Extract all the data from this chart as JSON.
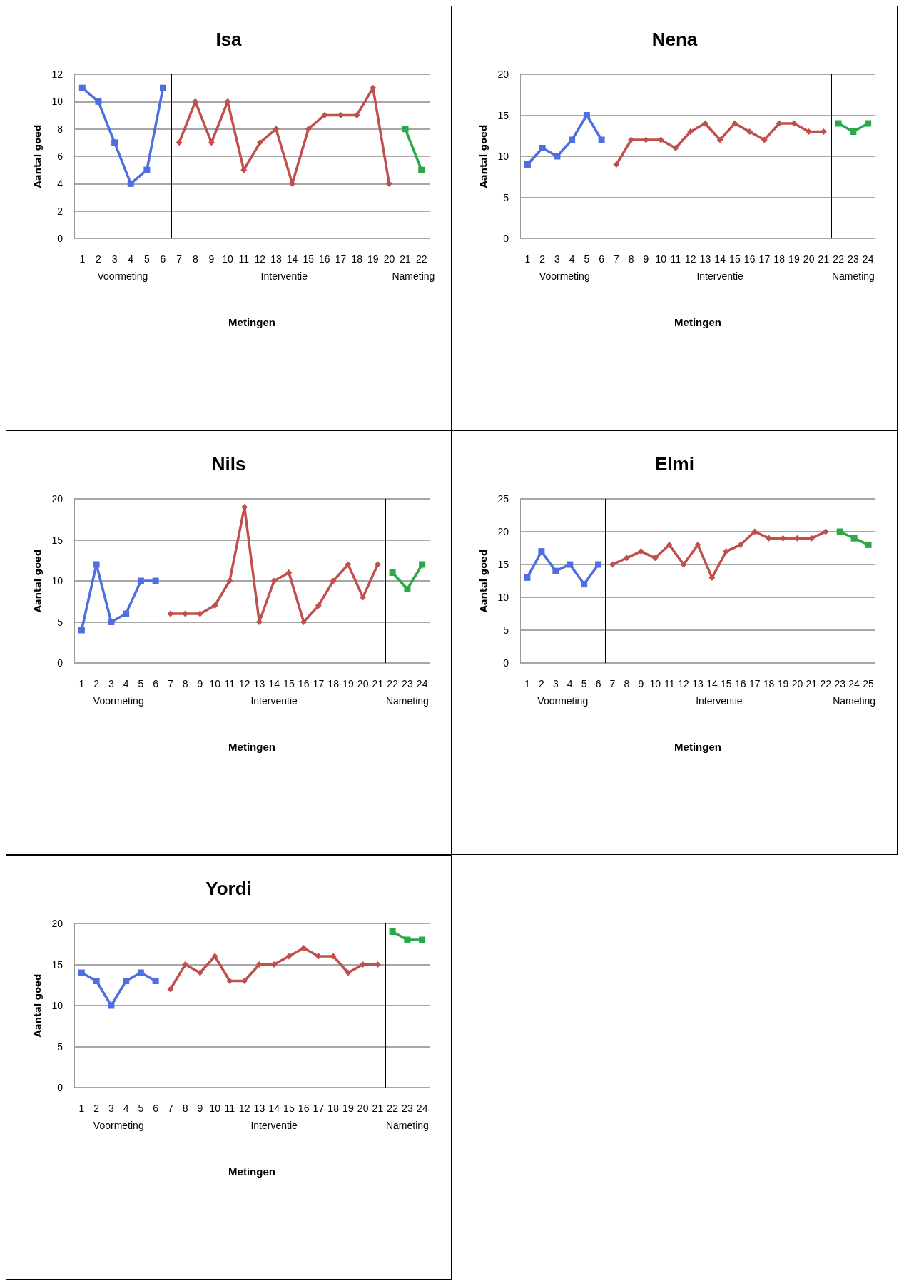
{
  "chart_data": [
    {
      "type": "line",
      "title": "Isa",
      "xlabel": "Metingen",
      "ylabel": "Aantal goed",
      "xlim": [
        0.5,
        22.5
      ],
      "xticks": [
        1,
        2,
        3,
        4,
        5,
        6,
        7,
        8,
        9,
        10,
        11,
        12,
        13,
        14,
        15,
        16,
        17,
        18,
        19,
        20,
        21,
        22
      ],
      "ylim": [
        0,
        12
      ],
      "yticks": [
        0,
        2,
        4,
        6,
        8,
        10,
        12
      ],
      "grid": "y",
      "annotations": [
        "Voormeting",
        "Interventie",
        "Nameting"
      ],
      "ref_lines": [
        {
          "axis": "x",
          "value": 6.5,
          "color": "#000000"
        },
        {
          "axis": "x",
          "value": 20.5,
          "color": "#000000"
        }
      ],
      "series": [
        {
          "color": "#4f6fe0",
          "marker": "square",
          "x": [
            1,
            2,
            3,
            4,
            5,
            6
          ],
          "values": [
            11,
            10,
            7,
            4,
            5,
            11
          ]
        },
        {
          "color": "#c0504d",
          "marker": "diamond",
          "x": [
            7,
            8,
            9,
            10,
            11,
            12,
            13,
            14,
            15,
            16,
            17,
            18,
            19,
            20
          ],
          "values": [
            7,
            10,
            7,
            10,
            5,
            7,
            8,
            4,
            8,
            9,
            9,
            9,
            11,
            4
          ]
        },
        {
          "color": "#2aa84a",
          "marker": "square",
          "x": [
            21,
            22
          ],
          "values": [
            8,
            5
          ]
        }
      ]
    },
    {
      "type": "line",
      "title": "Nena",
      "xlabel": "Metingen",
      "ylabel": "Aantal goed",
      "xlim": [
        0.5,
        24.5
      ],
      "xticks": [
        1,
        2,
        3,
        4,
        5,
        6,
        7,
        8,
        9,
        10,
        11,
        12,
        13,
        14,
        15,
        16,
        17,
        18,
        19,
        20,
        21,
        22,
        23,
        24
      ],
      "ylim": [
        0,
        20
      ],
      "yticks": [
        0,
        5,
        10,
        15,
        20
      ],
      "grid": "y",
      "annotations": [
        "Voormeting",
        "Interventie",
        "Nameting"
      ],
      "ref_lines": [
        {
          "axis": "x",
          "value": 6.5,
          "color": "#000000"
        },
        {
          "axis": "x",
          "value": 21.5,
          "color": "#000000"
        }
      ],
      "series": [
        {
          "color": "#4f6fe0",
          "marker": "square",
          "x": [
            1,
            2,
            3,
            4,
            5,
            6
          ],
          "values": [
            9,
            11,
            10,
            12,
            15,
            12
          ]
        },
        {
          "color": "#c0504d",
          "marker": "diamond",
          "x": [
            7,
            8,
            9,
            10,
            11,
            12,
            13,
            14,
            15,
            16,
            17,
            18,
            19,
            20,
            21
          ],
          "values": [
            9,
            12,
            12,
            12,
            11,
            13,
            14,
            12,
            14,
            13,
            12,
            14,
            14,
            13,
            13
          ]
        },
        {
          "color": "#2aa84a",
          "marker": "square",
          "x": [
            22,
            23,
            24
          ],
          "values": [
            14,
            13,
            14
          ]
        }
      ]
    },
    {
      "type": "line",
      "title": "Nils",
      "xlabel": "Metingen",
      "ylabel": "Aantal goed",
      "xlim": [
        0.5,
        24.5
      ],
      "xticks": [
        1,
        2,
        3,
        4,
        5,
        6,
        7,
        8,
        9,
        10,
        11,
        12,
        13,
        14,
        15,
        16,
        17,
        18,
        19,
        20,
        21,
        22,
        23,
        24
      ],
      "ylim": [
        0,
        20
      ],
      "yticks": [
        0,
        5,
        10,
        15,
        20
      ],
      "grid": "y",
      "annotations": [
        "Voormeting",
        "Interventie",
        "Nameting"
      ],
      "ref_lines": [
        {
          "axis": "x",
          "value": 6.5,
          "color": "#000000"
        },
        {
          "axis": "x",
          "value": 21.5,
          "color": "#000000"
        }
      ],
      "series": [
        {
          "color": "#4f6fe0",
          "marker": "square",
          "x": [
            1,
            2,
            3,
            4,
            5,
            6
          ],
          "values": [
            4,
            12,
            5,
            6,
            10,
            10
          ]
        },
        {
          "color": "#c0504d",
          "marker": "diamond",
          "x": [
            7,
            8,
            9,
            10,
            11,
            12,
            13,
            14,
            15,
            16,
            17,
            18,
            19,
            20,
            21
          ],
          "values": [
            6,
            6,
            6,
            7,
            10,
            19,
            5,
            10,
            11,
            5,
            7,
            10,
            12,
            8,
            12
          ]
        },
        {
          "color": "#2aa84a",
          "marker": "square",
          "x": [
            22,
            23,
            24
          ],
          "values": [
            11,
            9,
            12
          ]
        }
      ]
    },
    {
      "type": "line",
      "title": "Elmi",
      "xlabel": "Metingen",
      "ylabel": "Aantal goed",
      "xlim": [
        0.5,
        25.5
      ],
      "xticks": [
        1,
        2,
        3,
        4,
        5,
        6,
        7,
        8,
        9,
        10,
        11,
        12,
        13,
        14,
        15,
        16,
        17,
        18,
        19,
        20,
        21,
        22,
        23,
        24,
        25
      ],
      "ylim": [
        0,
        25
      ],
      "yticks": [
        0,
        5,
        10,
        15,
        20,
        25
      ],
      "grid": "y",
      "annotations": [
        "Voormeting",
        "Interventie",
        "Nameting"
      ],
      "ref_lines": [
        {
          "axis": "x",
          "value": 6.5,
          "color": "#000000"
        },
        {
          "axis": "x",
          "value": 22.5,
          "color": "#000000"
        }
      ],
      "series": [
        {
          "color": "#4f6fe0",
          "marker": "square",
          "x": [
            1,
            2,
            3,
            4,
            5,
            6
          ],
          "values": [
            13,
            17,
            14,
            15,
            12,
            15
          ]
        },
        {
          "color": "#c0504d",
          "marker": "diamond",
          "x": [
            7,
            8,
            9,
            10,
            11,
            12,
            13,
            14,
            15,
            16,
            17,
            18,
            19,
            20,
            21,
            22
          ],
          "values": [
            15,
            16,
            17,
            16,
            18,
            15,
            18,
            13,
            17,
            18,
            20,
            19,
            19,
            19,
            19,
            20
          ]
        },
        {
          "color": "#2aa84a",
          "marker": "square",
          "x": [
            23,
            24,
            25
          ],
          "values": [
            20,
            19,
            18
          ]
        }
      ]
    },
    {
      "type": "line",
      "title": "Yordi",
      "xlabel": "Metingen",
      "ylabel": "Aantal goed",
      "xlim": [
        0.5,
        24.5
      ],
      "xticks": [
        1,
        2,
        3,
        4,
        5,
        6,
        7,
        8,
        9,
        10,
        11,
        12,
        13,
        14,
        15,
        16,
        17,
        18,
        19,
        20,
        21,
        22,
        23,
        24
      ],
      "ylim": [
        0,
        20
      ],
      "yticks": [
        0,
        5,
        10,
        15,
        20
      ],
      "grid": "y",
      "annotations": [
        "Voormeting",
        "Interventie",
        "Nameting"
      ],
      "ref_lines": [
        {
          "axis": "x",
          "value": 6.5,
          "color": "#000000"
        },
        {
          "axis": "x",
          "value": 21.5,
          "color": "#000000"
        }
      ],
      "series": [
        {
          "color": "#4f6fe0",
          "marker": "square",
          "x": [
            1,
            2,
            3,
            4,
            5,
            6
          ],
          "values": [
            14,
            13,
            10,
            13,
            14,
            13
          ]
        },
        {
          "color": "#c0504d",
          "marker": "diamond",
          "x": [
            7,
            8,
            9,
            10,
            11,
            12,
            13,
            14,
            15,
            16,
            17,
            18,
            19,
            20,
            21
          ],
          "values": [
            12,
            15,
            14,
            16,
            13,
            13,
            15,
            15,
            16,
            17,
            16,
            16,
            14,
            15,
            15
          ]
        },
        {
          "color": "#2aa84a",
          "marker": "square",
          "x": [
            22,
            23,
            24
          ],
          "values": [
            19,
            18,
            18
          ]
        }
      ]
    }
  ]
}
